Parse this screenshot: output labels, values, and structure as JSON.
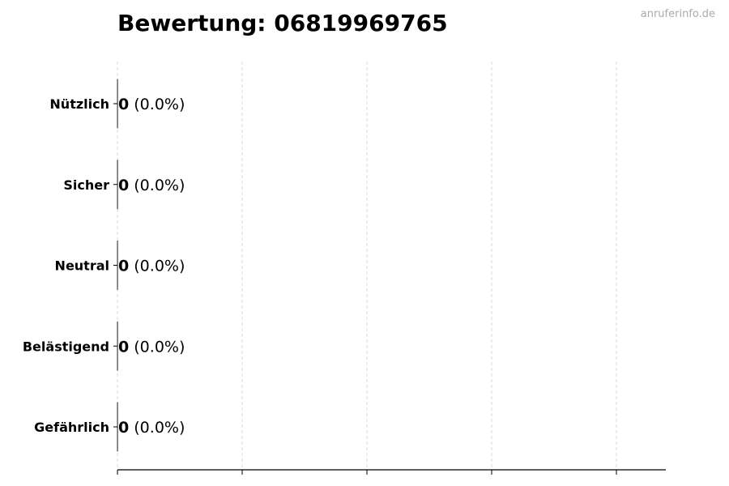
{
  "watermark": "anruferinfo.de",
  "chart_data": {
    "type": "bar",
    "orientation": "horizontal",
    "title": "Bewertung: 06819969765",
    "categories": [
      "Nützlich",
      "Sicher",
      "Neutral",
      "Belästigend",
      "Gefährlich"
    ],
    "values": [
      0,
      0,
      0,
      0,
      0
    ],
    "value_labels": [
      {
        "count": "0",
        "percent": "(0.0%)"
      },
      {
        "count": "0",
        "percent": "(0.0%)"
      },
      {
        "count": "0",
        "percent": "(0.0%)"
      },
      {
        "count": "0",
        "percent": "(0.0%)"
      },
      {
        "count": "0",
        "percent": "(0.0%)"
      }
    ],
    "xlabel": "",
    "ylabel": "",
    "x_tick_labels_shown": false,
    "grid": "vertical dashed",
    "colors": {
      "grid": "#d9d9d9",
      "axis": "#000000",
      "bar_edge": "#000000"
    }
  }
}
